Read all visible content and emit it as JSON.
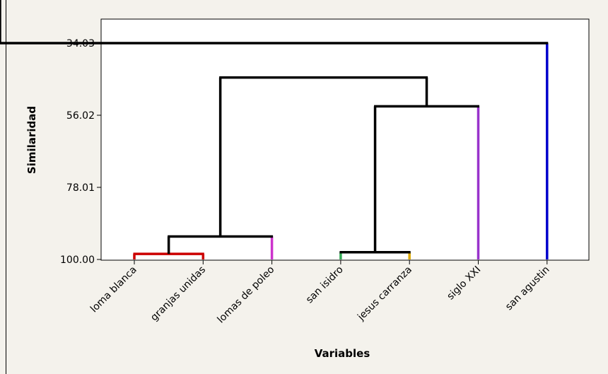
{
  "chart_data": {
    "type": "dendrogram",
    "xlabel": "Variables",
    "ylabel": "Similaridad",
    "yticks": [
      "34.03",
      "56.02",
      "78.01",
      "100.00"
    ],
    "ylim": [
      34.03,
      100.0
    ],
    "categories": [
      "loma blanca",
      "granjas unidas",
      "lomas de poleo",
      "san isidro",
      "jesus carranza",
      "siglo XXI",
      "san agustin"
    ],
    "leaf_colors": [
      "#cc0000",
      "#cc0000",
      "#cc33cc",
      "#33aa55",
      "#ddaa00",
      "#9933cc",
      "#0000cc"
    ],
    "merges": [
      {
        "left": "loma blanca",
        "right": "granjas unidas",
        "similarity": 98.3,
        "color": "#cc0000"
      },
      {
        "left": "san isidro",
        "right": "jesus carranza",
        "similarity": 97.8,
        "color": "#000000"
      },
      {
        "left": "loma blanca + granjas unidas",
        "right": "lomas de poleo",
        "similarity": 93.0,
        "color": "#000000"
      },
      {
        "left": "san isidro + jesus carranza",
        "right": "siglo XXI",
        "similarity": 53.3,
        "color": "#000000"
      },
      {
        "left": "loma blanca + granjas unidas + lomas de poleo",
        "right": "san isidro + jesus carranza + siglo XXI",
        "similarity": 44.5,
        "color": "#000000"
      },
      {
        "left": "all others",
        "right": "san agustin",
        "similarity": 34.03,
        "color": "#000000"
      }
    ]
  }
}
